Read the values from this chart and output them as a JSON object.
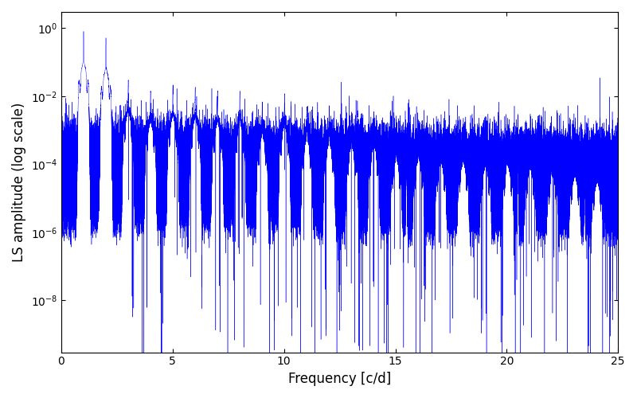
{
  "xlabel": "Frequency [c/d]",
  "ylabel": "LS amplitude (log scale)",
  "color": "#0000FF",
  "xlim": [
    0,
    25
  ],
  "ylim": [
    3e-10,
    3.0
  ],
  "ytick_vals": [
    1e-08,
    1e-06,
    0.0001,
    0.01,
    1.0
  ],
  "xticks": [
    0,
    5,
    10,
    15,
    20,
    25
  ],
  "bg_color": "#ffffff",
  "figsize": [
    8.0,
    5.0
  ],
  "dpi": 100,
  "seed": 7,
  "n_points": 200000,
  "freq_max": 25.0,
  "fundamental": 1.0027,
  "noise_floor_low": 5e-05,
  "noise_floor_high": 3e-05,
  "noise_std_log": 0.6,
  "down_spike_count": 120,
  "down_spike_depth_min": 2.0,
  "down_spike_depth_max": 6.0,
  "linewidth": 0.3
}
